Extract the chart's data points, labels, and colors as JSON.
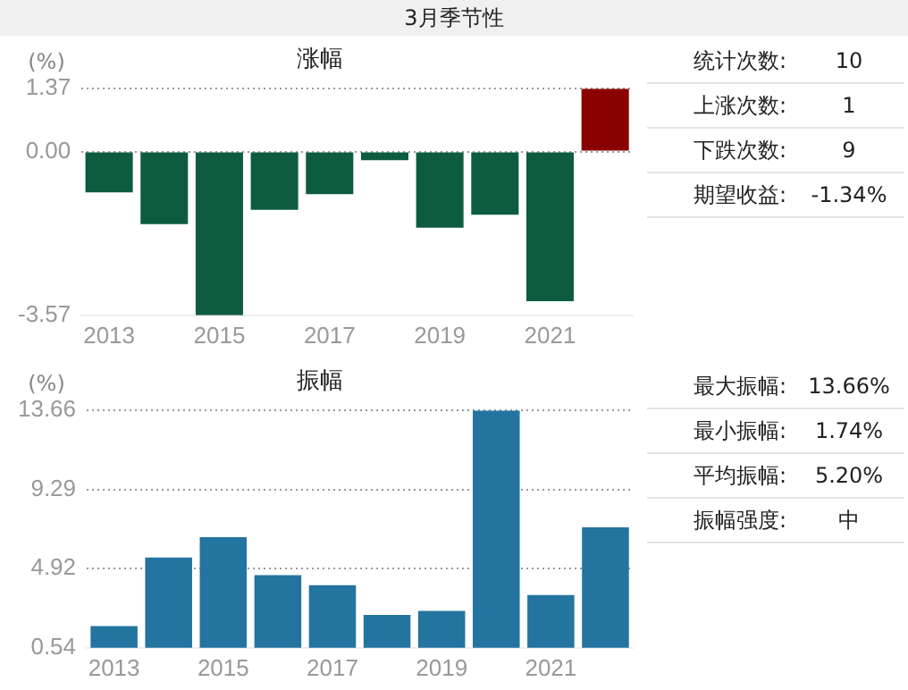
{
  "chart_data": [
    {
      "type": "other",
      "title": "3月季节性"
    },
    {
      "type": "bar",
      "title": "涨幅",
      "ylabel": "(%)",
      "categories": [
        "2013",
        null,
        "2015",
        null,
        "2017",
        null,
        "2019",
        null,
        "2021",
        null
      ],
      "values": [
        -0.89,
        -1.58,
        -3.57,
        -1.27,
        -0.93,
        -0.19,
        -1.66,
        -1.38,
        -3.26,
        1.37
      ],
      "colors": [
        "#0e5c40",
        "#0e5c40",
        "#0e5c40",
        "#0e5c40",
        "#0e5c40",
        "#0e5c40",
        "#0e5c40",
        "#0e5c40",
        "#0e5c40",
        "#8b0000"
      ],
      "ylim": [
        -3.57,
        1.37
      ],
      "yticks": [
        -3.57,
        {
          "value": 0,
          "label": "0.00"
        },
        1.37
      ],
      "grid": "y"
    },
    {
      "type": "other",
      "annotations": [
        "统计次数:",
        "10",
        "上涨次数:",
        "1",
        "下跌次数:",
        "9",
        "期望收益:",
        "-1.34%"
      ]
    },
    {
      "type": "bar",
      "title": "振幅",
      "ylabel": "(%)",
      "categories": [
        "2013",
        null,
        "2015",
        null,
        "2017",
        null,
        "2019",
        null,
        "2021",
        null
      ],
      "values": [
        1.74,
        5.53,
        6.65,
        4.55,
        4.0,
        2.36,
        2.58,
        13.66,
        3.46,
        7.2
      ],
      "color": "#2474a0",
      "ylim": [
        0.54,
        13.66
      ],
      "yticks": [
        0.54,
        4.92,
        9.29,
        13.66
      ],
      "grid": "y"
    },
    {
      "type": "other",
      "annotations": [
        "最大振幅:",
        "13.66%",
        "最小振幅:",
        "1.74%",
        "平均振幅:",
        "5.20%",
        "振幅强度:",
        "中"
      ]
    }
  ]
}
